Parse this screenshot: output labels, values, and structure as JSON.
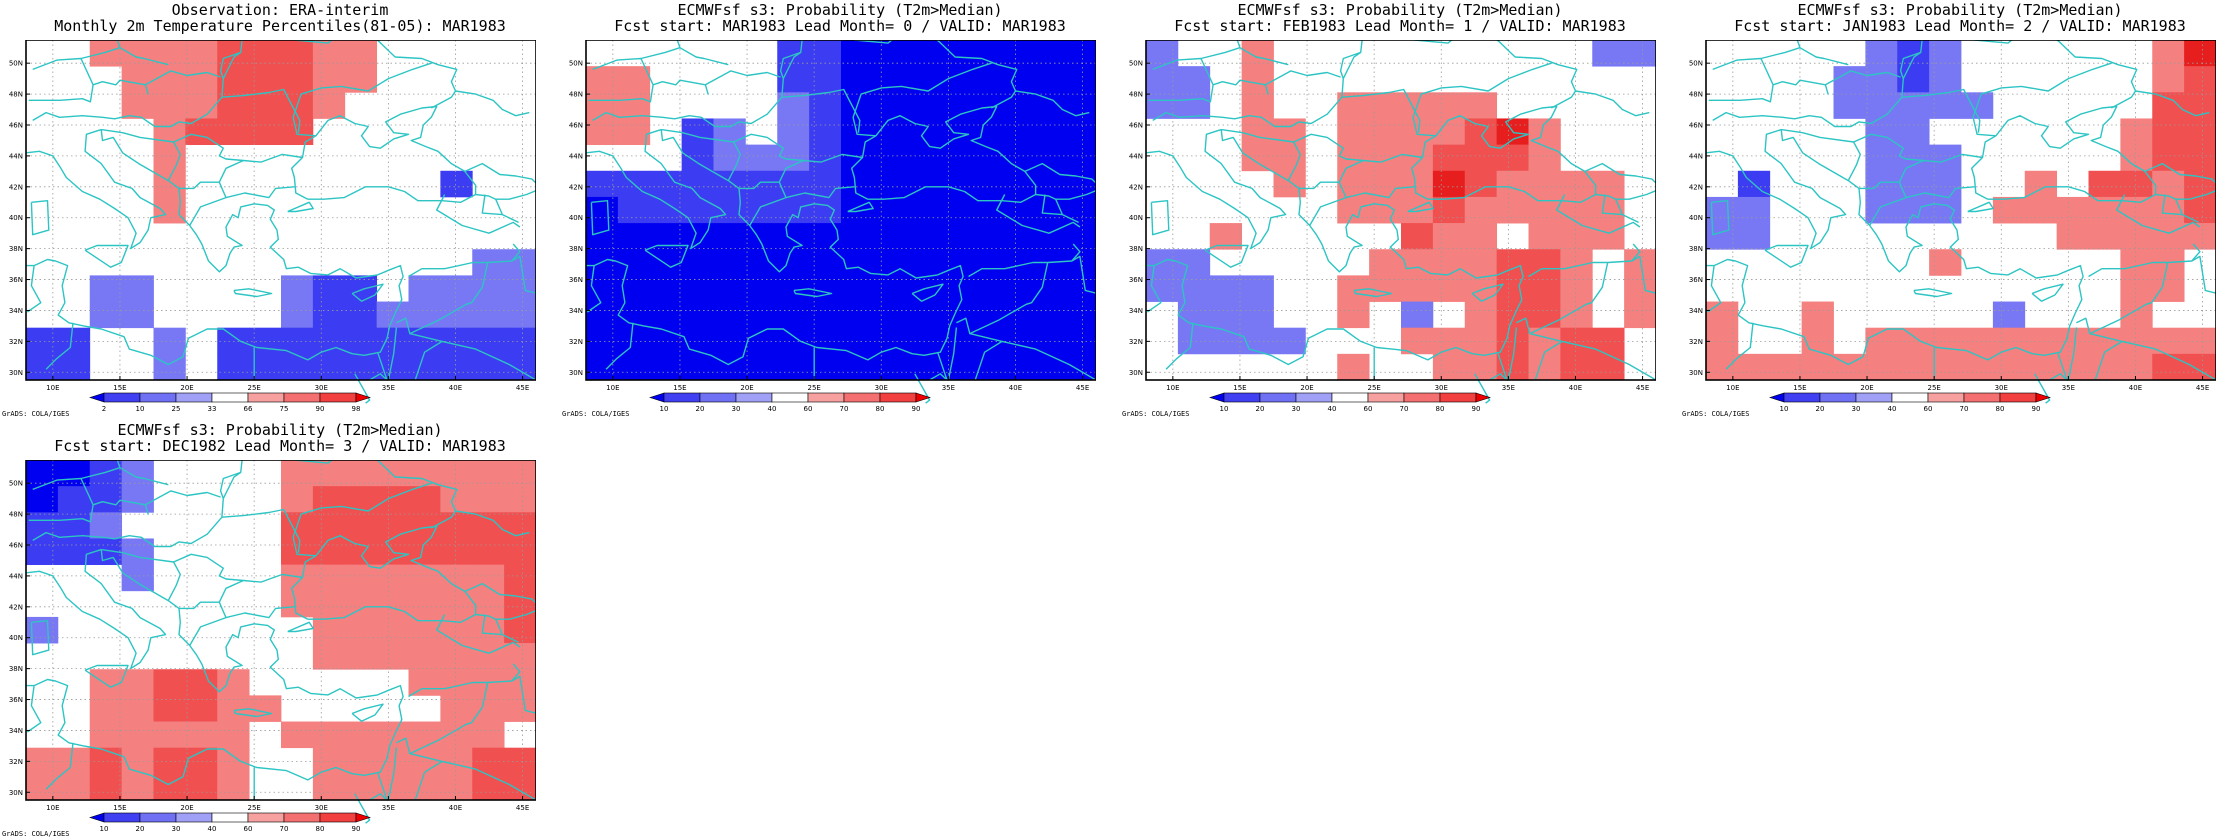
{
  "panels": [
    {
      "title1": "Observation: ERA-interim",
      "title2": "Monthly 2m Temperature Percentiles(81-05): MAR1983",
      "credit": "GrADS: COLA/IGES",
      "colorbar_labels": [
        "2",
        "10",
        "25",
        "33",
        "66",
        "75",
        "90",
        "98"
      ],
      "grid": [
        [
          0,
          0,
          6,
          6,
          6,
          6,
          7,
          7,
          7,
          6,
          6,
          0,
          0,
          0,
          0,
          0
        ],
        [
          0,
          0,
          0,
          6,
          6,
          6,
          7,
          7,
          7,
          6,
          6,
          0,
          0,
          0,
          0,
          0
        ],
        [
          0,
          0,
          0,
          6,
          6,
          6,
          7,
          7,
          7,
          6,
          0,
          0,
          0,
          0,
          0,
          0
        ],
        [
          0,
          0,
          0,
          0,
          6,
          7,
          7,
          7,
          7,
          0,
          0,
          0,
          0,
          0,
          0,
          0
        ],
        [
          0,
          0,
          0,
          0,
          6,
          0,
          0,
          0,
          0,
          0,
          0,
          0,
          0,
          0,
          0,
          0
        ],
        [
          0,
          0,
          0,
          0,
          6,
          0,
          0,
          0,
          0,
          0,
          0,
          0,
          0,
          2,
          0,
          0
        ],
        [
          0,
          0,
          0,
          0,
          6,
          0,
          0,
          0,
          0,
          0,
          0,
          0,
          0,
          0,
          0,
          0
        ],
        [
          0,
          0,
          0,
          0,
          0,
          0,
          0,
          0,
          0,
          0,
          0,
          0,
          0,
          0,
          0,
          0
        ],
        [
          0,
          0,
          0,
          0,
          0,
          0,
          0,
          0,
          0,
          0,
          0,
          0,
          0,
          0,
          3,
          3
        ],
        [
          0,
          0,
          3,
          3,
          0,
          0,
          0,
          0,
          3,
          2,
          2,
          0,
          3,
          3,
          3,
          3
        ],
        [
          0,
          0,
          3,
          3,
          0,
          0,
          0,
          0,
          3,
          2,
          2,
          3,
          3,
          3,
          3,
          3
        ],
        [
          2,
          2,
          0,
          0,
          3,
          0,
          2,
          2,
          2,
          2,
          2,
          2,
          2,
          2,
          2,
          2
        ],
        [
          2,
          2,
          0,
          0,
          3,
          0,
          2,
          2,
          2,
          2,
          2,
          2,
          2,
          2,
          2,
          2
        ]
      ]
    },
    {
      "title1": "ECMWFsf s3: Probability (T2m>Median)",
      "title2": "Fcst start: MAR1983  Lead Month= 0 / VALID: MAR1983",
      "credit": "GrADS: COLA/IGES",
      "colorbar_labels": [
        "10",
        "20",
        "30",
        "40",
        "60",
        "70",
        "80",
        "90"
      ],
      "grid": [
        [
          0,
          0,
          0,
          0,
          0,
          0,
          2,
          2,
          1,
          1,
          1,
          1,
          1,
          1,
          1,
          1
        ],
        [
          6,
          6,
          0,
          0,
          0,
          0,
          2,
          2,
          1,
          1,
          1,
          1,
          1,
          1,
          1,
          1
        ],
        [
          6,
          6,
          0,
          0,
          0,
          0,
          3,
          2,
          1,
          1,
          1,
          1,
          1,
          1,
          1,
          1
        ],
        [
          6,
          6,
          0,
          2,
          3,
          0,
          3,
          2,
          1,
          1,
          1,
          1,
          1,
          1,
          1,
          1
        ],
        [
          0,
          0,
          0,
          2,
          3,
          3,
          3,
          2,
          1,
          1,
          1,
          1,
          1,
          1,
          1,
          1
        ],
        [
          2,
          2,
          2,
          2,
          2,
          2,
          2,
          2,
          1,
          1,
          1,
          1,
          1,
          1,
          1,
          1
        ],
        [
          1,
          2,
          2,
          2,
          2,
          2,
          2,
          2,
          1,
          1,
          1,
          1,
          1,
          1,
          1,
          1
        ],
        [
          1,
          1,
          1,
          1,
          1,
          1,
          1,
          1,
          1,
          1,
          1,
          1,
          1,
          1,
          1,
          1
        ],
        [
          1,
          1,
          1,
          1,
          1,
          1,
          1,
          1,
          1,
          1,
          1,
          1,
          1,
          1,
          1,
          1
        ],
        [
          1,
          1,
          1,
          1,
          1,
          1,
          1,
          1,
          1,
          1,
          1,
          1,
          1,
          1,
          1,
          1
        ],
        [
          1,
          1,
          1,
          1,
          1,
          1,
          1,
          1,
          1,
          1,
          1,
          1,
          1,
          1,
          1,
          1
        ],
        [
          1,
          1,
          1,
          1,
          1,
          1,
          1,
          1,
          1,
          1,
          1,
          1,
          1,
          1,
          1,
          1
        ],
        [
          1,
          1,
          1,
          1,
          1,
          1,
          1,
          1,
          1,
          1,
          1,
          1,
          1,
          1,
          1,
          1
        ]
      ]
    },
    {
      "title1": "ECMWFsf s3: Probability (T2m>Median)",
      "title2": "Fcst start: FEB1983  Lead Month= 1 / VALID: MAR1983",
      "credit": "GrADS: COLA/IGES",
      "colorbar_labels": [
        "10",
        "20",
        "30",
        "40",
        "60",
        "70",
        "80",
        "90"
      ],
      "grid": [
        [
          3,
          0,
          0,
          6,
          0,
          0,
          0,
          0,
          0,
          0,
          0,
          0,
          0,
          0,
          3,
          3
        ],
        [
          3,
          3,
          0,
          6,
          0,
          0,
          0,
          0,
          0,
          0,
          0,
          0,
          0,
          0,
          0,
          0
        ],
        [
          3,
          3,
          0,
          6,
          0,
          0,
          6,
          6,
          6,
          6,
          6,
          0,
          0,
          0,
          0,
          0
        ],
        [
          0,
          0,
          0,
          6,
          6,
          0,
          6,
          6,
          6,
          6,
          7,
          8,
          6,
          0,
          0,
          0
        ],
        [
          0,
          0,
          0,
          6,
          6,
          0,
          6,
          6,
          6,
          7,
          7,
          7,
          6,
          0,
          0,
          0
        ],
        [
          0,
          0,
          0,
          0,
          6,
          0,
          6,
          6,
          6,
          8,
          7,
          6,
          6,
          6,
          6,
          0
        ],
        [
          0,
          0,
          0,
          0,
          0,
          0,
          6,
          6,
          6,
          7,
          6,
          6,
          6,
          6,
          6,
          0
        ],
        [
          0,
          0,
          6,
          0,
          0,
          0,
          0,
          0,
          7,
          6,
          6,
          0,
          6,
          6,
          6,
          0
        ],
        [
          3,
          3,
          0,
          0,
          0,
          0,
          0,
          6,
          6,
          6,
          6,
          7,
          7,
          6,
          0,
          6
        ],
        [
          3,
          3,
          3,
          3,
          0,
          0,
          6,
          6,
          6,
          6,
          6,
          7,
          7,
          6,
          0,
          6
        ],
        [
          0,
          3,
          3,
          3,
          0,
          0,
          6,
          0,
          3,
          0,
          6,
          7,
          7,
          6,
          0,
          6
        ],
        [
          0,
          3,
          3,
          3,
          3,
          0,
          0,
          0,
          6,
          6,
          6,
          7,
          6,
          7,
          7,
          0
        ],
        [
          0,
          0,
          0,
          0,
          0,
          0,
          6,
          0,
          0,
          6,
          6,
          7,
          6,
          7,
          7,
          0
        ]
      ]
    },
    {
      "title1": "ECMWFsf s3: Probability (T2m>Median)",
      "title2": "Fcst start: JAN1983  Lead Month= 2 / VALID: MAR1983",
      "credit": "GrADS: COLA/IGES",
      "colorbar_labels": [
        "10",
        "20",
        "30",
        "40",
        "60",
        "70",
        "80",
        "90"
      ],
      "grid": [
        [
          0,
          0,
          0,
          0,
          0,
          3,
          2,
          3,
          0,
          0,
          0,
          0,
          0,
          0,
          6,
          8
        ],
        [
          0,
          0,
          0,
          0,
          3,
          3,
          2,
          3,
          0,
          0,
          0,
          0,
          0,
          0,
          6,
          7
        ],
        [
          0,
          0,
          0,
          0,
          3,
          3,
          3,
          3,
          3,
          0,
          0,
          0,
          0,
          0,
          7,
          7
        ],
        [
          0,
          0,
          0,
          0,
          0,
          3,
          3,
          0,
          0,
          0,
          0,
          0,
          0,
          6,
          7,
          7
        ],
        [
          0,
          0,
          0,
          0,
          0,
          3,
          3,
          3,
          0,
          0,
          0,
          0,
          0,
          6,
          7,
          7
        ],
        [
          0,
          2,
          0,
          0,
          0,
          3,
          3,
          3,
          0,
          0,
          6,
          0,
          7,
          7,
          6,
          7
        ],
        [
          3,
          3,
          0,
          0,
          0,
          3,
          3,
          3,
          0,
          6,
          6,
          6,
          6,
          6,
          6,
          7
        ],
        [
          3,
          3,
          0,
          0,
          0,
          0,
          0,
          0,
          0,
          0,
          0,
          6,
          6,
          6,
          6,
          6
        ],
        [
          0,
          0,
          0,
          0,
          0,
          0,
          0,
          6,
          0,
          0,
          0,
          0,
          0,
          6,
          6,
          0
        ],
        [
          0,
          0,
          0,
          0,
          0,
          0,
          0,
          0,
          0,
          0,
          0,
          0,
          0,
          6,
          6,
          0
        ],
        [
          6,
          0,
          0,
          6,
          0,
          0,
          0,
          0,
          0,
          3,
          0,
          0,
          0,
          6,
          0,
          0
        ],
        [
          6,
          0,
          0,
          6,
          0,
          6,
          6,
          6,
          6,
          6,
          6,
          6,
          6,
          6,
          6,
          6
        ],
        [
          6,
          6,
          6,
          6,
          6,
          6,
          6,
          6,
          6,
          6,
          6,
          6,
          6,
          6,
          7,
          7
        ]
      ]
    },
    {
      "title1": "ECMWFsf s3: Probability (T2m>Median)",
      "title2": "Fcst start: DEC1982  Lead Month= 3 / VALID: MAR1983",
      "credit": "GrADS: COLA/IGES",
      "colorbar_labels": [
        "10",
        "20",
        "30",
        "40",
        "60",
        "70",
        "80",
        "90"
      ],
      "grid": [
        [
          1,
          1,
          2,
          3,
          0,
          0,
          0,
          0,
          6,
          6,
          6,
          6,
          6,
          6,
          6,
          6
        ],
        [
          1,
          2,
          2,
          3,
          0,
          0,
          0,
          0,
          6,
          7,
          7,
          7,
          7,
          6,
          6,
          6
        ],
        [
          2,
          2,
          3,
          0,
          0,
          0,
          0,
          0,
          7,
          7,
          7,
          7,
          7,
          7,
          7,
          7
        ],
        [
          2,
          2,
          2,
          3,
          0,
          0,
          0,
          0,
          7,
          7,
          7,
          7,
          7,
          7,
          7,
          7
        ],
        [
          0,
          0,
          0,
          3,
          0,
          0,
          0,
          0,
          6,
          6,
          6,
          6,
          6,
          6,
          6,
          7
        ],
        [
          0,
          0,
          0,
          0,
          0,
          0,
          0,
          0,
          6,
          6,
          6,
          6,
          6,
          6,
          6,
          7
        ],
        [
          3,
          0,
          0,
          0,
          0,
          0,
          0,
          0,
          0,
          6,
          6,
          6,
          6,
          6,
          6,
          7
        ],
        [
          0,
          0,
          0,
          0,
          0,
          0,
          0,
          0,
          0,
          6,
          6,
          6,
          6,
          6,
          6,
          6
        ],
        [
          0,
          0,
          6,
          6,
          7,
          7,
          6,
          0,
          0,
          0,
          0,
          0,
          6,
          6,
          6,
          6
        ],
        [
          0,
          0,
          6,
          6,
          7,
          7,
          6,
          6,
          0,
          0,
          0,
          0,
          0,
          6,
          6,
          6
        ],
        [
          0,
          0,
          6,
          6,
          6,
          6,
          6,
          0,
          6,
          6,
          6,
          6,
          6,
          6,
          6,
          0
        ],
        [
          6,
          6,
          7,
          6,
          7,
          7,
          6,
          0,
          0,
          6,
          6,
          6,
          6,
          6,
          7,
          7
        ],
        [
          6,
          6,
          7,
          6,
          7,
          7,
          6,
          0,
          0,
          6,
          6,
          6,
          6,
          6,
          7,
          7
        ]
      ]
    }
  ],
  "map": {
    "lon_range": [
      8,
      46
    ],
    "lat_range": [
      29.5,
      51.5
    ],
    "lon_ticks": [
      10,
      15,
      20,
      25,
      30,
      35,
      40,
      45
    ],
    "lon_labels": [
      "10E",
      "15E",
      "20E",
      "25E",
      "30E",
      "35E",
      "40E",
      "45E"
    ],
    "lat_ticks": [
      30,
      32,
      34,
      36,
      38,
      40,
      42,
      44,
      46,
      48,
      50
    ],
    "lat_labels": [
      "30N",
      "32N",
      "34N",
      "36N",
      "38N",
      "40N",
      "42N",
      "44N",
      "46N",
      "48N",
      "50N"
    ],
    "grid_lines": true,
    "coast_color": "#2dc4c4"
  },
  "palette": [
    "#ffffff",
    "#0000f0",
    "#3c3cf2",
    "#7878f5",
    "#aaaaf8",
    "#f8aaaa",
    "#f58080",
    "#f05050",
    "#e61e1e",
    "#ff0000"
  ],
  "colorbar_colors": [
    "#0000ee",
    "#4040f2",
    "#7070f4",
    "#a0a0f6",
    "#ffffff",
    "#f6a0a0",
    "#f47070",
    "#f24040",
    "#ee0000"
  ]
}
